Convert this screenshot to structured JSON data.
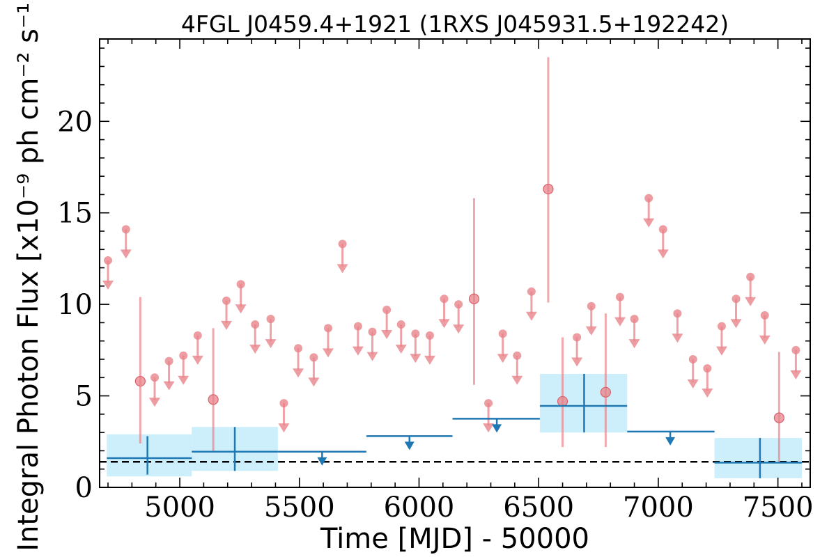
{
  "chart_data": {
    "type": "scatter",
    "title": "4FGL J0459.4+1921 (1RXS J045931.5+192242)",
    "xlabel": "Time [MJD] - 50000",
    "ylabel": "Integral Photon Flux [x10⁻⁹ ph cm⁻² s⁻¹]",
    "xlim": [
      4665,
      7635
    ],
    "ylim": [
      0,
      24.5
    ],
    "x_ticks": [
      5000,
      5500,
      6000,
      6500,
      7000,
      7500
    ],
    "y_ticks": [
      0,
      5,
      10,
      15,
      20
    ],
    "grid": false,
    "reference_line": {
      "y": 1.4,
      "style": "dashed",
      "color": "#000000"
    },
    "colors": {
      "short_bin": "#e8838a",
      "long_bin": "#1f77b4",
      "long_bin_band": "#cdeefb"
    },
    "series": [
      {
        "points": [
          {
            "x": 4835,
            "y": 5.8,
            "ylo": 2.4,
            "yhi": 10.4
          },
          {
            "x": 5140,
            "y": 4.8,
            "ylo": 2.0,
            "yhi": 8.7
          },
          {
            "x": 6230,
            "y": 10.3,
            "ylo": 5.6,
            "yhi": 15.8
          },
          {
            "x": 6540,
            "y": 16.3,
            "ylo": 10.1,
            "yhi": 23.5
          },
          {
            "x": 6600,
            "y": 4.7,
            "ylo": 2.2,
            "yhi": 8.2
          },
          {
            "x": 6780,
            "y": 5.2,
            "ylo": 2.2,
            "yhi": 9.5
          },
          {
            "x": 7505,
            "y": 3.8,
            "ylo": 1.4,
            "yhi": 7.4
          }
        ],
        "upper_limits": [
          {
            "x": 4700,
            "y": 12.4
          },
          {
            "x": 4775,
            "y": 14.1
          },
          {
            "x": 4895,
            "y": 6.0
          },
          {
            "x": 4955,
            "y": 6.9
          },
          {
            "x": 5015,
            "y": 7.2
          },
          {
            "x": 5075,
            "y": 8.3
          },
          {
            "x": 5195,
            "y": 10.2
          },
          {
            "x": 5255,
            "y": 11.1
          },
          {
            "x": 5315,
            "y": 8.9
          },
          {
            "x": 5380,
            "y": 9.2
          },
          {
            "x": 5435,
            "y": 4.6
          },
          {
            "x": 5495,
            "y": 7.6
          },
          {
            "x": 5560,
            "y": 7.1
          },
          {
            "x": 5620,
            "y": 8.7
          },
          {
            "x": 5680,
            "y": 13.3
          },
          {
            "x": 5745,
            "y": 8.8
          },
          {
            "x": 5805,
            "y": 8.5
          },
          {
            "x": 5865,
            "y": 9.7
          },
          {
            "x": 5925,
            "y": 8.9
          },
          {
            "x": 5985,
            "y": 8.4
          },
          {
            "x": 6045,
            "y": 8.3
          },
          {
            "x": 6105,
            "y": 10.3
          },
          {
            "x": 6165,
            "y": 10.0
          },
          {
            "x": 6290,
            "y": 4.6
          },
          {
            "x": 6350,
            "y": 8.4
          },
          {
            "x": 6410,
            "y": 7.2
          },
          {
            "x": 6470,
            "y": 10.7
          },
          {
            "x": 6660,
            "y": 8.2
          },
          {
            "x": 6720,
            "y": 9.9
          },
          {
            "x": 6840,
            "y": 10.4
          },
          {
            "x": 6900,
            "y": 9.2
          },
          {
            "x": 6960,
            "y": 15.8
          },
          {
            "x": 7020,
            "y": 14.1
          },
          {
            "x": 7080,
            "y": 9.5
          },
          {
            "x": 7145,
            "y": 7.0
          },
          {
            "x": 7205,
            "y": 6.5
          },
          {
            "x": 7265,
            "y": 8.8
          },
          {
            "x": 7325,
            "y": 10.3
          },
          {
            "x": 7385,
            "y": 11.5
          },
          {
            "x": 7445,
            "y": 9.4
          },
          {
            "x": 7575,
            "y": 7.5
          }
        ]
      },
      {
        "points": [
          {
            "x0": 4695,
            "x1": 5050,
            "x": 4865,
            "y": 1.6,
            "ylo": 0.7,
            "yhi": 2.8,
            "band_lo": 0.6,
            "band_hi": 2.9
          },
          {
            "x0": 5050,
            "x1": 5410,
            "x": 5230,
            "y": 1.95,
            "ylo": 0.9,
            "yhi": 3.3,
            "band_lo": 0.9,
            "band_hi": 3.3
          },
          {
            "x0": 6505,
            "x1": 6870,
            "x": 6690,
            "y": 4.45,
            "ylo": 3.0,
            "yhi": 6.2,
            "band_lo": 3.0,
            "band_hi": 6.2
          },
          {
            "x0": 7235,
            "x1": 7600,
            "x": 7425,
            "y": 1.35,
            "ylo": 0.5,
            "yhi": 2.7,
            "band_lo": 0.5,
            "band_hi": 2.7
          }
        ],
        "upper_limits": [
          {
            "x0": 5410,
            "x1": 5780,
            "x": 5595,
            "y": 1.95
          },
          {
            "x0": 5780,
            "x1": 6140,
            "x": 5960,
            "y": 2.8
          },
          {
            "x0": 6140,
            "x1": 6505,
            "x": 6325,
            "y": 3.75
          },
          {
            "x0": 6870,
            "x1": 7235,
            "x": 7050,
            "y": 3.05
          }
        ]
      }
    ]
  }
}
